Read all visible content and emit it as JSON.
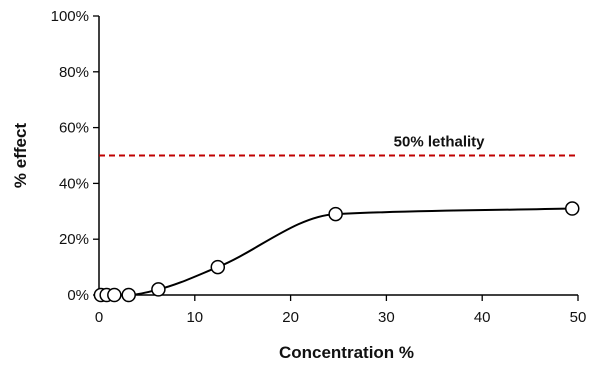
{
  "chart_data": {
    "type": "scatter",
    "xlabel": "Concentration %",
    "ylabel": "% effect",
    "xlim": [
      0,
      50
    ],
    "ylim": [
      0,
      100
    ],
    "x_ticks": [
      "0",
      "10",
      "20",
      "30",
      "40",
      "50"
    ],
    "y_ticks": [
      "0%",
      "20%",
      "40%",
      "60%",
      "80%",
      "100%"
    ],
    "grid": false,
    "series": [
      {
        "points": [
          {
            "x": 0.2,
            "y": 0
          },
          {
            "x": 0.8,
            "y": 0
          },
          {
            "x": 1.6,
            "y": 0
          },
          {
            "x": 3.1,
            "y": 0
          },
          {
            "x": 6.2,
            "y": 2
          },
          {
            "x": 12.4,
            "y": 10
          },
          {
            "x": 24.7,
            "y": 29
          },
          {
            "x": 49.4,
            "y": 31
          }
        ],
        "marker": "open-circle",
        "line": "smooth",
        "color": "#000000"
      }
    ],
    "reference_line": {
      "y": 50,
      "label": "50% lethality",
      "style": "dashed",
      "color": "#c00000"
    }
  }
}
